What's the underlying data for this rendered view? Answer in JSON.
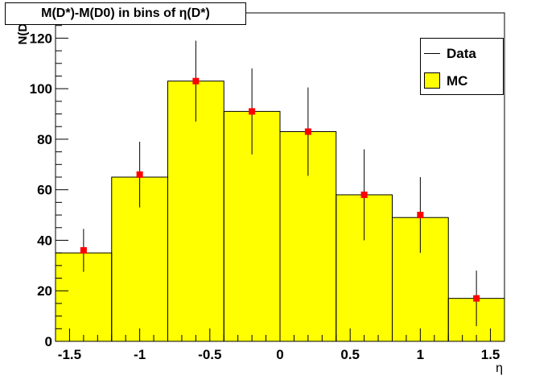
{
  "chart_data": {
    "type": "histogram",
    "title": "M(D*)-M(D0) in bins of η(D*)",
    "xlabel": "η",
    "ylabel": "N(D*)",
    "xlim": [
      -1.6,
      1.6
    ],
    "ylim": [
      0,
      130
    ],
    "x_ticks": [
      -1.5,
      -1,
      -0.5,
      0,
      0.5,
      1,
      1.5
    ],
    "x_tick_labels": [
      "-1.5",
      "-1",
      "-0.5",
      "0",
      "0.5",
      "1",
      "1.5"
    ],
    "y_ticks": [
      0,
      20,
      40,
      60,
      80,
      100,
      120
    ],
    "y_tick_labels": [
      "0",
      "20",
      "40",
      "60",
      "80",
      "100",
      "120"
    ],
    "bin_edges": [
      -1.6,
      -1.2,
      -0.8,
      -0.4,
      0.0,
      0.4,
      0.8,
      1.2,
      1.6
    ],
    "series": [
      {
        "name": "MC",
        "kind": "filled-histogram",
        "color": "#ffff00",
        "values": [
          35,
          65,
          103,
          91,
          83,
          58,
          49,
          17
        ]
      },
      {
        "name": "Data",
        "kind": "points-with-errors",
        "color": "#ff0000",
        "x": [
          -1.4,
          -1.0,
          -0.6,
          -0.2,
          0.2,
          0.6,
          1.0,
          1.4
        ],
        "values": [
          36,
          66,
          103,
          91,
          83,
          58,
          50,
          17
        ],
        "errors": [
          8.5,
          13,
          16,
          17,
          17.5,
          18,
          15,
          11
        ]
      }
    ],
    "legend_position": "top-right",
    "grid": false
  }
}
